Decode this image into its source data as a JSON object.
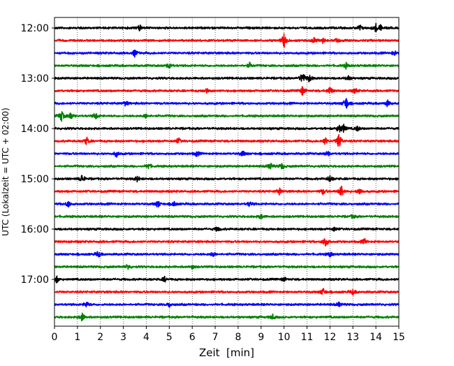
{
  "chart_data": {
    "type": "line",
    "title": "",
    "xlabel": "Zeit  [min]",
    "ylabel": "UTC (Lokalzeit = UTC + 02:00)",
    "xlim": [
      0,
      15
    ],
    "x_ticks": [
      0,
      1,
      2,
      3,
      4,
      5,
      6,
      7,
      8,
      9,
      10,
      11,
      12,
      13,
      14,
      15
    ],
    "y_tick_labels": [
      "12:00",
      "13:00",
      "14:00",
      "15:00",
      "16:00",
      "17:00"
    ],
    "vertical_grid": true,
    "grid_style": "dotted",
    "trace_interval_min": 15,
    "color_cycle": [
      "#000000",
      "#ff0000",
      "#0000ff",
      "#008000"
    ],
    "traces": [
      {
        "start": "12:00",
        "color": "#000000",
        "events": [
          [
            3.7,
            0.25
          ],
          [
            13.3,
            0.25
          ],
          [
            14.0,
            0.3
          ],
          [
            14.2,
            0.2
          ]
        ]
      },
      {
        "start": "12:15",
        "color": "#ff0000",
        "events": [
          [
            10.0,
            0.6
          ],
          [
            11.3,
            0.25
          ],
          [
            11.7,
            0.2
          ],
          [
            12.3,
            0.25
          ]
        ]
      },
      {
        "start": "12:30",
        "color": "#0000ff",
        "events": [
          [
            3.5,
            0.3
          ],
          [
            14.8,
            0.2
          ]
        ]
      },
      {
        "start": "12:45",
        "color": "#008000",
        "events": [
          [
            5.0,
            0.25
          ],
          [
            8.5,
            0.2
          ],
          [
            12.7,
            0.2
          ]
        ]
      },
      {
        "start": "13:00",
        "color": "#000000",
        "events": [
          [
            10.8,
            0.5
          ],
          [
            11.1,
            0.3
          ],
          [
            12.8,
            0.2
          ]
        ]
      },
      {
        "start": "13:15",
        "color": "#ff0000",
        "events": [
          [
            6.6,
            0.2
          ],
          [
            10.8,
            0.35
          ],
          [
            12.0,
            0.35
          ],
          [
            13.1,
            0.2
          ]
        ]
      },
      {
        "start": "13:30",
        "color": "#0000ff",
        "events": [
          [
            3.1,
            0.2
          ],
          [
            12.7,
            0.55
          ],
          [
            14.5,
            0.25
          ]
        ]
      },
      {
        "start": "13:45",
        "color": "#008000",
        "events": [
          [
            0.3,
            0.45
          ],
          [
            0.7,
            0.3
          ],
          [
            1.8,
            0.25
          ],
          [
            4.0,
            0.2
          ]
        ]
      },
      {
        "start": "14:00",
        "color": "#000000",
        "events": [
          [
            12.4,
            0.35
          ],
          [
            12.6,
            0.3
          ],
          [
            13.2,
            0.2
          ]
        ]
      },
      {
        "start": "14:15",
        "color": "#ff0000",
        "events": [
          [
            1.4,
            0.3
          ],
          [
            5.4,
            0.25
          ],
          [
            11.8,
            0.3
          ],
          [
            12.4,
            0.7
          ]
        ]
      },
      {
        "start": "14:30",
        "color": "#0000ff",
        "events": [
          [
            2.7,
            0.25
          ],
          [
            6.2,
            0.2
          ],
          [
            8.2,
            0.25
          ],
          [
            11.9,
            0.2
          ]
        ]
      },
      {
        "start": "14:45",
        "color": "#008000",
        "events": [
          [
            4.1,
            0.25
          ],
          [
            9.4,
            0.3
          ],
          [
            9.9,
            0.25
          ]
        ]
      },
      {
        "start": "15:00",
        "color": "#000000",
        "events": [
          [
            1.2,
            0.35
          ],
          [
            3.6,
            0.2
          ],
          [
            12.0,
            0.3
          ]
        ]
      },
      {
        "start": "15:15",
        "color": "#ff0000",
        "events": [
          [
            9.8,
            0.25
          ],
          [
            11.7,
            0.25
          ],
          [
            12.5,
            0.55
          ],
          [
            13.3,
            0.3
          ]
        ]
      },
      {
        "start": "15:30",
        "color": "#0000ff",
        "events": [
          [
            0.6,
            0.25
          ],
          [
            4.5,
            0.3
          ],
          [
            5.2,
            0.2
          ],
          [
            8.5,
            0.2
          ]
        ]
      },
      {
        "start": "15:45",
        "color": "#008000",
        "events": [
          [
            9.0,
            0.2
          ],
          [
            13.0,
            0.15
          ]
        ]
      },
      {
        "start": "16:00",
        "color": "#000000",
        "events": [
          [
            7.1,
            0.2
          ],
          [
            12.2,
            0.15
          ]
        ]
      },
      {
        "start": "16:15",
        "color": "#ff0000",
        "events": [
          [
            11.8,
            0.45
          ],
          [
            13.5,
            0.2
          ]
        ]
      },
      {
        "start": "16:30",
        "color": "#0000ff",
        "events": [
          [
            1.9,
            0.25
          ],
          [
            6.9,
            0.2
          ],
          [
            12.0,
            0.2
          ]
        ]
      },
      {
        "start": "16:45",
        "color": "#008000",
        "events": [
          [
            3.2,
            0.2
          ],
          [
            6.0,
            0.15
          ]
        ]
      },
      {
        "start": "17:00",
        "color": "#000000",
        "events": [
          [
            0.1,
            0.25
          ],
          [
            4.8,
            0.2
          ],
          [
            10.0,
            0.15
          ]
        ]
      },
      {
        "start": "17:15",
        "color": "#ff0000",
        "events": [
          [
            11.7,
            0.3
          ],
          [
            13.0,
            0.2
          ]
        ]
      },
      {
        "start": "17:30",
        "color": "#0000ff",
        "events": [
          [
            1.4,
            0.25
          ],
          [
            5.0,
            0.2
          ],
          [
            12.4,
            0.2
          ]
        ]
      },
      {
        "start": "17:45",
        "color": "#008000",
        "events": [
          [
            1.2,
            0.35
          ],
          [
            9.5,
            0.2
          ]
        ]
      }
    ]
  }
}
